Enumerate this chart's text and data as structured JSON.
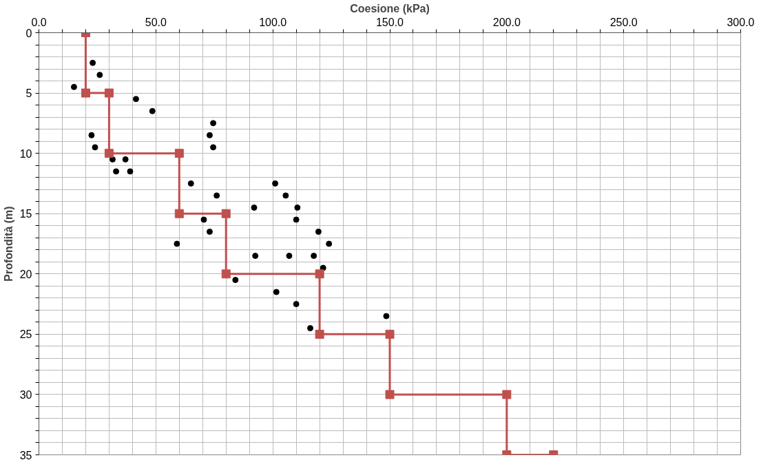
{
  "chart_data": {
    "type": "scatter",
    "xlabel": "Coesione (kPa)",
    "ylabel": "Profondità (m)",
    "xlim": [
      0,
      300
    ],
    "ylim": [
      35,
      0
    ],
    "xticks": [
      {
        "value": 0,
        "label": "0.0"
      },
      {
        "value": 10,
        "label": null
      },
      {
        "value": 20,
        "label": null
      },
      {
        "value": 30,
        "label": null
      },
      {
        "value": 40,
        "label": null
      },
      {
        "value": 50,
        "label": "50.0"
      },
      {
        "value": 60,
        "label": null
      },
      {
        "value": 70,
        "label": null
      },
      {
        "value": 80,
        "label": null
      },
      {
        "value": 90,
        "label": null
      },
      {
        "value": 100,
        "label": "100.0"
      },
      {
        "value": 110,
        "label": null
      },
      {
        "value": 120,
        "label": null
      },
      {
        "value": 130,
        "label": null
      },
      {
        "value": 140,
        "label": null
      },
      {
        "value": 150,
        "label": "150.0"
      },
      {
        "value": 160,
        "label": null
      },
      {
        "value": 170,
        "label": null
      },
      {
        "value": 180,
        "label": null
      },
      {
        "value": 190,
        "label": null
      },
      {
        "value": 200,
        "label": "200.0"
      },
      {
        "value": 210,
        "label": null
      },
      {
        "value": 220,
        "label": null
      },
      {
        "value": 230,
        "label": null
      },
      {
        "value": 240,
        "label": null
      },
      {
        "value": 250,
        "label": "250.0"
      },
      {
        "value": 260,
        "label": null
      },
      {
        "value": 270,
        "label": null
      },
      {
        "value": 280,
        "label": null
      },
      {
        "value": 290,
        "label": null
      },
      {
        "value": 300,
        "label": "300.0"
      }
    ],
    "yticks": [
      0,
      {
        "value": 1,
        "label": null
      },
      {
        "value": 2,
        "label": null
      },
      {
        "value": 3,
        "label": null
      },
      {
        "value": 4,
        "label": null
      },
      5,
      {
        "value": 6,
        "label": null
      },
      {
        "value": 7,
        "label": null
      },
      {
        "value": 8,
        "label": null
      },
      {
        "value": 9,
        "label": null
      },
      10,
      {
        "value": 11,
        "label": null
      },
      {
        "value": 12,
        "label": null
      },
      {
        "value": 13,
        "label": null
      },
      {
        "value": 14,
        "label": null
      },
      15,
      {
        "value": 16,
        "label": null
      },
      {
        "value": 17,
        "label": null
      },
      {
        "value": 18,
        "label": null
      },
      {
        "value": 19,
        "label": null
      },
      20,
      {
        "value": 21,
        "label": null
      },
      {
        "value": 22,
        "label": null
      },
      {
        "value": 23,
        "label": null
      },
      {
        "value": 24,
        "label": null
      },
      25,
      {
        "value": 26,
        "label": null
      },
      {
        "value": 27,
        "label": null
      },
      {
        "value": 28,
        "label": null
      },
      {
        "value": 29,
        "label": null
      },
      30,
      {
        "value": 31,
        "label": null
      },
      {
        "value": 32,
        "label": null
      },
      {
        "value": 33,
        "label": null
      },
      {
        "value": 34,
        "label": null
      },
      35
    ],
    "grid": true,
    "series": [
      {
        "marker": "circle",
        "color": "#000000",
        "x": [
          23,
          26,
          15,
          41.5,
          48.5,
          74.5,
          73,
          22.5,
          74.5,
          24,
          31.5,
          37,
          33,
          39,
          65,
          101,
          76,
          105.5,
          92,
          110.5,
          70.5,
          110,
          73,
          119.5,
          59,
          124,
          92.5,
          107,
          117.5,
          121.5,
          84,
          101.5,
          110,
          148.5,
          116
        ],
        "values": [
          2.5,
          3.5,
          4.5,
          5.5,
          6.5,
          7.5,
          8.5,
          8.5,
          9.5,
          9.5,
          10.5,
          10.5,
          11.5,
          11.5,
          12.5,
          12.5,
          13.5,
          13.5,
          14.5,
          14.5,
          15.5,
          15.5,
          16.5,
          16.5,
          17.5,
          17.5,
          18.5,
          18.5,
          18.5,
          19.5,
          20.5,
          21.5,
          22.5,
          23.5,
          24.5
        ]
      },
      {
        "type": "line",
        "marker": "square",
        "line_style": "solid",
        "color": "#c0504d",
        "x": [
          20,
          20,
          30,
          30,
          60,
          60,
          80,
          80,
          120,
          120,
          150,
          150,
          200,
          200,
          220
        ],
        "values": [
          0,
          5,
          5,
          10,
          10,
          15,
          15,
          20,
          20,
          25,
          25,
          30,
          30,
          35,
          35
        ]
      }
    ]
  }
}
